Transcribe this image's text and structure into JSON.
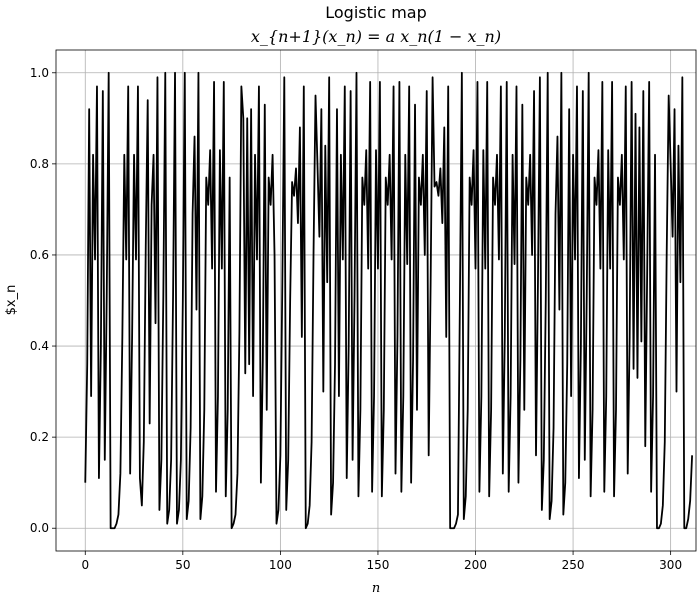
{
  "chart_data": {
    "type": "line",
    "title": "Logistic map",
    "subtitle": "x_{n+1}(x_n) = a x_n(1 − x_n)",
    "xlabel": "n",
    "ylabel": "$x_n",
    "xlim": [
      -15,
      313
    ],
    "ylim": [
      -0.05,
      1.05
    ],
    "grid": true,
    "x_ticks": [
      0,
      50,
      100,
      150,
      200,
      250,
      300
    ],
    "y_ticks": [
      0.0,
      0.2,
      0.4,
      0.6,
      0.8,
      1.0
    ],
    "x_tick_labels": [
      "0",
      "50",
      "100",
      "150",
      "200",
      "250",
      "300"
    ],
    "y_tick_labels": [
      "0.0",
      "0.2",
      "0.4",
      "0.6",
      "0.8",
      "1.0"
    ],
    "line_color": "#000000",
    "series": [
      {
        "x0": 0,
        "values": [
          0.1,
          0.36,
          0.92,
          0.29,
          0.82,
          0.59,
          0.97,
          0.11,
          0.4,
          0.96,
          0.15,
          0.51,
          1.0,
          0.0,
          0.0,
          0.0,
          0.01,
          0.03,
          0.12,
          0.42,
          0.82,
          0.59,
          0.97,
          0.12,
          0.42,
          0.82,
          0.59,
          0.97,
          0.11,
          0.05,
          0.19,
          0.62,
          0.94,
          0.23,
          0.71,
          0.82,
          0.45,
          0.99,
          0.04,
          0.15,
          0.51,
          1.0,
          0.01,
          0.04,
          0.15,
          0.51,
          1.0,
          0.01,
          0.04,
          0.15,
          0.5,
          1.0,
          0.02,
          0.06,
          0.22,
          0.69,
          0.86,
          0.48,
          1.0,
          0.02,
          0.07,
          0.26,
          0.77,
          0.71,
          0.83,
          0.57,
          0.98,
          0.08,
          0.29,
          0.83,
          0.57,
          0.98,
          0.07,
          0.26,
          0.77,
          0.0,
          0.01,
          0.03,
          0.12,
          0.43,
          0.97,
          0.9,
          0.34,
          0.9,
          0.36,
          0.92,
          0.29,
          0.82,
          0.59,
          0.97,
          0.1,
          0.37,
          0.93,
          0.26,
          0.77,
          0.71,
          0.82,
          0.6,
          0.01,
          0.04,
          0.16,
          0.54,
          0.99,
          0.04,
          0.15,
          0.5,
          0.76,
          0.73,
          0.79,
          0.67,
          0.88,
          0.42,
          0.97,
          0.0,
          0.01,
          0.05,
          0.19,
          0.61,
          0.95,
          0.8,
          0.64,
          0.92,
          0.3,
          0.84,
          0.54,
          0.99,
          0.03,
          0.1,
          0.36,
          0.92,
          0.29,
          0.82,
          0.59,
          0.97,
          0.11,
          0.4,
          0.96,
          0.15,
          0.51,
          1.0,
          0.07,
          0.26,
          0.77,
          0.71,
          0.83,
          0.57,
          0.98,
          0.08,
          0.29,
          0.83,
          0.57,
          0.98,
          0.07,
          0.26,
          0.77,
          0.71,
          0.82,
          0.59,
          0.97,
          0.12,
          0.42,
          0.98,
          0.08,
          0.29,
          0.82,
          0.58,
          0.97,
          0.1,
          0.37,
          0.93,
          0.26,
          0.77,
          0.71,
          0.82,
          0.6,
          0.96,
          0.16,
          0.54,
          0.99,
          0.75,
          0.76,
          0.73,
          0.79,
          0.67,
          0.88,
          0.42,
          0.97,
          0.0,
          0.0,
          0.0,
          0.01,
          0.03,
          0.5,
          1.0,
          0.02,
          0.07,
          0.26,
          0.77,
          0.71,
          0.83,
          0.57,
          0.98,
          0.08,
          0.29,
          0.83,
          0.57,
          0.98,
          0.07,
          0.26,
          0.77,
          0.71,
          0.82,
          0.59,
          0.97,
          0.12,
          0.42,
          0.98,
          0.08,
          0.29,
          0.82,
          0.58,
          0.97,
          0.1,
          0.37,
          0.93,
          0.26,
          0.77,
          0.71,
          0.82,
          0.6,
          0.96,
          0.16,
          0.54,
          0.99,
          0.04,
          0.15,
          0.5,
          1.0,
          0.02,
          0.06,
          0.22,
          0.69,
          0.86,
          0.48,
          1.0,
          0.03,
          0.1,
          0.36,
          0.92,
          0.29,
          0.82,
          0.59,
          0.97,
          0.11,
          0.4,
          0.96,
          0.15,
          0.51,
          1.0,
          0.07,
          0.26,
          0.77,
          0.71,
          0.83,
          0.57,
          0.98,
          0.08,
          0.29,
          0.83,
          0.57,
          0.98,
          0.07,
          0.26,
          0.77,
          0.71,
          0.82,
          0.59,
          0.97,
          0.12,
          0.42,
          0.98,
          0.35,
          0.91,
          0.33,
          0.88,
          0.41,
          0.96,
          0.18,
          0.57,
          0.98,
          0.08,
          0.29,
          0.82,
          0.0,
          0.0,
          0.01,
          0.05,
          0.19,
          0.61,
          0.95,
          0.8,
          0.64,
          0.92,
          0.3,
          0.84,
          0.54,
          0.99,
          0.0,
          0.0,
          0.02,
          0.06,
          0.16
        ]
      }
    ]
  }
}
